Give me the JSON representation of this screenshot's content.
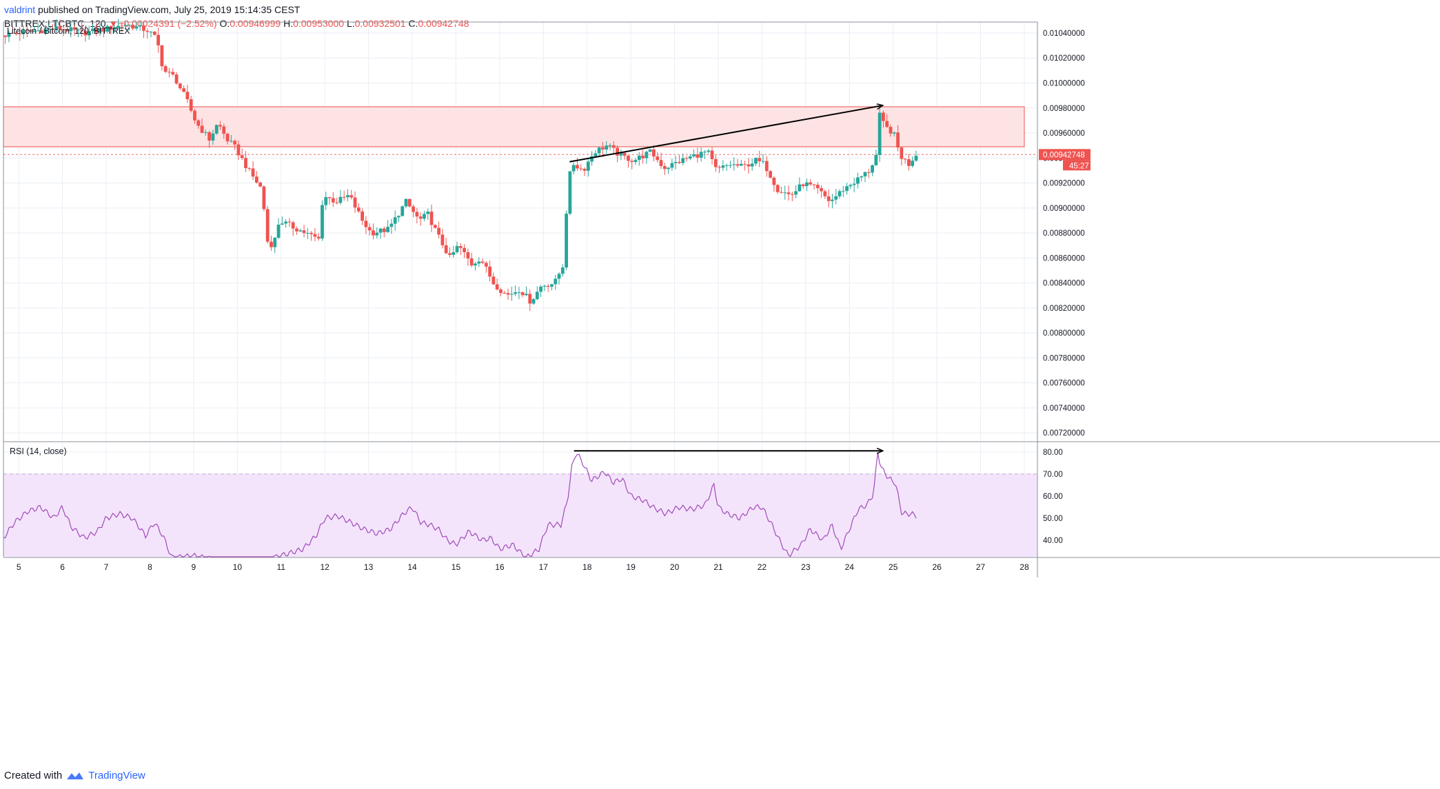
{
  "header": {
    "author": "valdrint",
    "published": " published on TradingView.com, July 25, 2019 15:14:35 CEST",
    "symbol": "BITTREX:LTCBTC, 120",
    "change_arrow": "▼",
    "change": "−0.00024391 (−2.52%)",
    "o_label": "O:",
    "o_value": "0.00946999",
    "h_label": "H:",
    "h_value": "0.00953000",
    "l_label": "L:",
    "l_value": "0.00932501",
    "c_label": "C:",
    "c_value": "0.00942748"
  },
  "footer": {
    "created_with": "Created with",
    "brand": "TradingView"
  },
  "colors": {
    "up": "#26a69a",
    "down": "#ef5350",
    "zone_fill": "#fde3e3",
    "zone_line": "#f06a6a",
    "rsi": "#a14ab8",
    "rsi_band": "#f3e4fb",
    "grid": "#e9eef4",
    "arrow": "#000000"
  },
  "chart_data": [
    {
      "type": "candlestick",
      "title": "Litecoin / Bitcoin, 120, BITTREX",
      "x_ticks": [
        "5",
        "6",
        "7",
        "8",
        "9",
        "10",
        "11",
        "12",
        "13",
        "14",
        "15",
        "16",
        "17",
        "18",
        "19",
        "20",
        "21",
        "22",
        "23",
        "24",
        "25",
        "26",
        "27",
        "28"
      ],
      "x_range": [
        4.65,
        28.3
      ],
      "y_ticks": [
        "0.01040000",
        "0.01020000",
        "0.01000000",
        "0.00980000",
        "0.00960000",
        "0.00940000",
        "0.00920000",
        "0.00900000",
        "0.00880000",
        "0.00860000",
        "0.00840000",
        "0.00820000",
        "0.00800000",
        "0.00780000",
        "0.00760000",
        "0.00740000",
        "0.00720000"
      ],
      "y_range": [
        0.007135,
        0.010488
      ],
      "last_price_label": "0.00942748",
      "countdown_label": "45:27",
      "resistance_zone": {
        "from_day": 4.65,
        "to_day": 28.0,
        "low": 0.00949,
        "high": 0.00981
      },
      "last_price": 0.00942748,
      "trendline": {
        "x1": 17.6,
        "y1": 0.00937,
        "x2": 24.75,
        "y2": 0.00982
      },
      "anchors": [
        [
          4.65,
          0.01038
        ],
        [
          5.0,
          0.0104
        ],
        [
          5.5,
          0.01042
        ],
        [
          6.0,
          0.01044
        ],
        [
          6.5,
          0.0104
        ],
        [
          7.0,
          0.01043
        ],
        [
          7.5,
          0.01047
        ],
        [
          8.0,
          0.01042
        ],
        [
          8.2,
          0.01035
        ],
        [
          8.35,
          0.0101
        ],
        [
          8.6,
          0.01005
        ],
        [
          8.9,
          0.00985
        ],
        [
          9.1,
          0.00968
        ],
        [
          9.4,
          0.00955
        ],
        [
          9.6,
          0.00968
        ],
        [
          9.8,
          0.00955
        ],
        [
          10.0,
          0.00948
        ],
        [
          10.3,
          0.0093
        ],
        [
          10.6,
          0.00915
        ],
        [
          10.75,
          0.00868
        ],
        [
          10.9,
          0.00875
        ],
        [
          11.0,
          0.0089
        ],
        [
          11.3,
          0.00885
        ],
        [
          11.6,
          0.0088
        ],
        [
          11.9,
          0.00875
        ],
        [
          12.0,
          0.0091
        ],
        [
          12.3,
          0.00905
        ],
        [
          12.6,
          0.0091
        ],
        [
          12.9,
          0.0089
        ],
        [
          13.1,
          0.0088
        ],
        [
          13.5,
          0.00883
        ],
        [
          13.9,
          0.00905
        ],
        [
          14.2,
          0.0089
        ],
        [
          14.4,
          0.00895
        ],
        [
          14.6,
          0.0088
        ],
        [
          14.9,
          0.0086
        ],
        [
          15.1,
          0.0087
        ],
        [
          15.4,
          0.00855
        ],
        [
          15.6,
          0.0086
        ],
        [
          15.9,
          0.0084
        ],
        [
          16.2,
          0.0083
        ],
        [
          16.5,
          0.00835
        ],
        [
          16.75,
          0.00825
        ],
        [
          17.0,
          0.00838
        ],
        [
          17.3,
          0.0084
        ],
        [
          17.5,
          0.00855
        ],
        [
          17.6,
          0.00918
        ],
        [
          17.7,
          0.00936
        ],
        [
          17.95,
          0.0093
        ],
        [
          18.2,
          0.00945
        ],
        [
          18.5,
          0.0095
        ],
        [
          18.8,
          0.00942
        ],
        [
          19.1,
          0.00938
        ],
        [
          19.5,
          0.00945
        ],
        [
          19.8,
          0.00932
        ],
        [
          20.2,
          0.00938
        ],
        [
          20.5,
          0.00942
        ],
        [
          20.8,
          0.00945
        ],
        [
          21.0,
          0.0093
        ],
        [
          21.3,
          0.00935
        ],
        [
          21.6,
          0.00933
        ],
        [
          21.9,
          0.00938
        ],
        [
          22.1,
          0.00935
        ],
        [
          22.4,
          0.00915
        ],
        [
          22.7,
          0.0091
        ],
        [
          23.0,
          0.0092
        ],
        [
          23.3,
          0.00915
        ],
        [
          23.6,
          0.00905
        ],
        [
          23.9,
          0.00915
        ],
        [
          24.2,
          0.00922
        ],
        [
          24.5,
          0.0093
        ],
        [
          24.65,
          0.00942
        ],
        [
          24.72,
          0.00975
        ],
        [
          24.85,
          0.00965
        ],
        [
          25.05,
          0.0096
        ],
        [
          25.2,
          0.00942
        ],
        [
          25.4,
          0.00935
        ],
        [
          25.55,
          0.00943
        ]
      ]
    },
    {
      "type": "line",
      "title": "RSI (14, close)",
      "y_ticks": [
        "80.00",
        "70.00",
        "60.00",
        "50.00",
        "40.00"
      ],
      "y_range": [
        32.5,
        84.0
      ],
      "overbought": 70,
      "band": [
        30,
        70
      ],
      "divergence_line": {
        "x1": 17.7,
        "y1": 80.5,
        "x2": 24.75,
        "y2": 80.5
      },
      "anchors": [
        [
          4.65,
          41
        ],
        [
          4.9,
          48
        ],
        [
          5.2,
          53
        ],
        [
          5.5,
          55
        ],
        [
          5.8,
          50
        ],
        [
          6.0,
          55
        ],
        [
          6.2,
          46
        ],
        [
          6.5,
          41
        ],
        [
          6.8,
          44
        ],
        [
          7.0,
          50
        ],
        [
          7.3,
          52
        ],
        [
          7.6,
          50
        ],
        [
          7.9,
          42
        ],
        [
          8.1,
          48
        ],
        [
          8.3,
          42
        ],
        [
          8.5,
          32
        ],
        [
          9.0,
          33
        ],
        [
          9.5,
          31
        ],
        [
          10.0,
          31
        ],
        [
          10.6,
          31
        ],
        [
          11.0,
          33
        ],
        [
          11.5,
          36
        ],
        [
          11.8,
          42
        ],
        [
          12.0,
          50
        ],
        [
          12.3,
          51
        ],
        [
          12.6,
          48
        ],
        [
          12.9,
          45
        ],
        [
          13.2,
          43
        ],
        [
          13.5,
          45
        ],
        [
          13.8,
          52
        ],
        [
          14.0,
          55
        ],
        [
          14.2,
          48
        ],
        [
          14.4,
          47
        ],
        [
          14.6,
          45
        ],
        [
          14.8,
          40
        ],
        [
          15.0,
          38
        ],
        [
          15.3,
          44
        ],
        [
          15.6,
          40
        ],
        [
          15.8,
          41
        ],
        [
          16.0,
          36
        ],
        [
          16.3,
          38
        ],
        [
          16.6,
          32
        ],
        [
          16.9,
          36
        ],
        [
          17.1,
          47
        ],
        [
          17.4,
          47
        ],
        [
          17.55,
          58
        ],
        [
          17.65,
          73
        ],
        [
          17.75,
          80
        ],
        [
          17.9,
          75
        ],
        [
          18.1,
          67
        ],
        [
          18.4,
          71
        ],
        [
          18.6,
          66
        ],
        [
          18.8,
          68
        ],
        [
          19.0,
          60
        ],
        [
          19.3,
          58
        ],
        [
          19.5,
          55
        ],
        [
          19.8,
          52
        ],
        [
          20.1,
          55
        ],
        [
          20.4,
          54
        ],
        [
          20.7,
          56
        ],
        [
          20.9,
          65
        ],
        [
          21.0,
          55
        ],
        [
          21.2,
          52
        ],
        [
          21.5,
          50
        ],
        [
          21.8,
          55
        ],
        [
          22.0,
          55
        ],
        [
          22.2,
          48
        ],
        [
          22.4,
          40
        ],
        [
          22.6,
          33
        ],
        [
          22.9,
          38
        ],
        [
          23.1,
          45
        ],
        [
          23.4,
          40
        ],
        [
          23.6,
          47
        ],
        [
          23.8,
          36
        ],
        [
          24.0,
          45
        ],
        [
          24.2,
          54
        ],
        [
          24.4,
          56
        ],
        [
          24.55,
          61
        ],
        [
          24.65,
          80
        ],
        [
          24.72,
          73
        ],
        [
          24.9,
          68
        ],
        [
          25.05,
          66
        ],
        [
          25.2,
          52
        ],
        [
          25.4,
          52
        ],
        [
          25.55,
          51
        ]
      ]
    }
  ]
}
